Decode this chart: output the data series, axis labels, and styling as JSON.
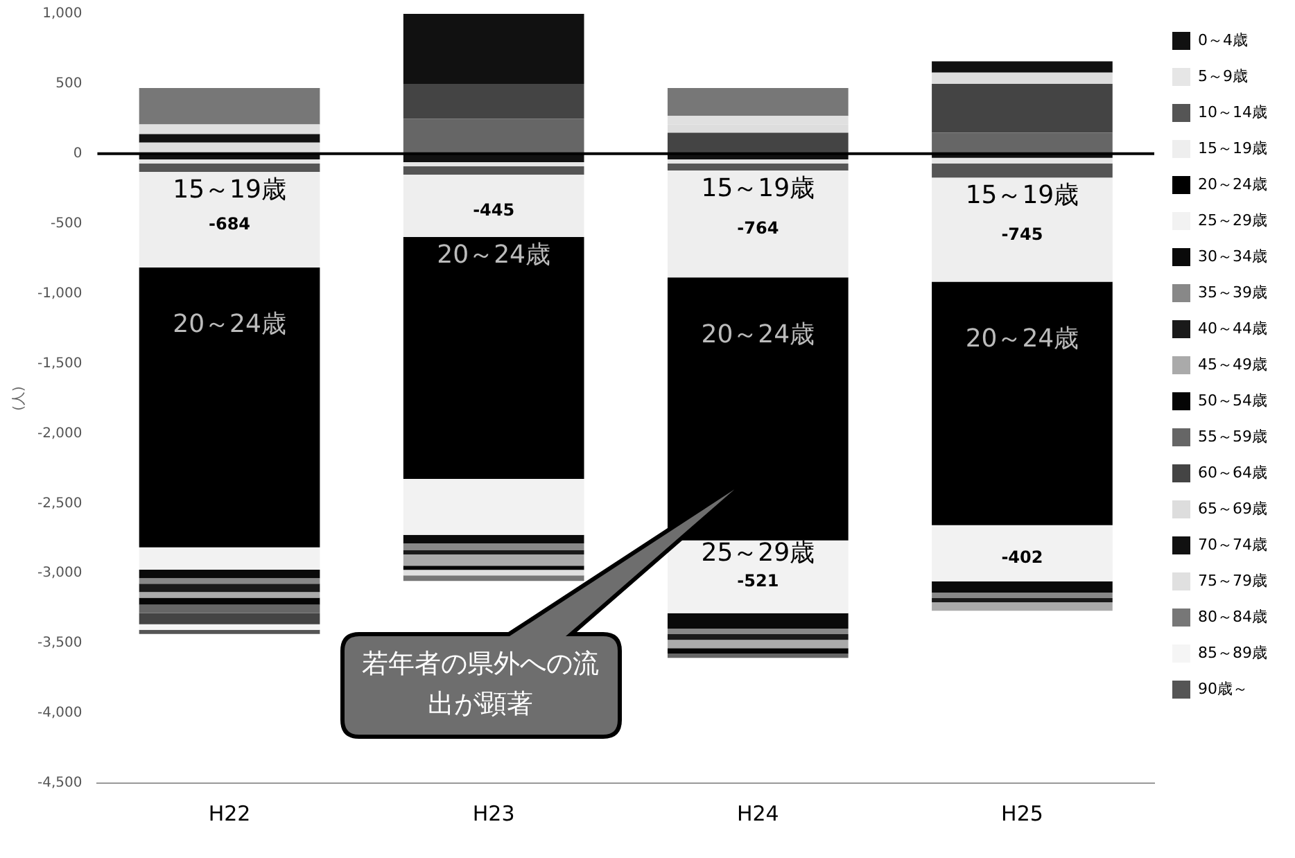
{
  "chart_data": {
    "type": "bar",
    "stacked": true,
    "ylabel": "(人)",
    "categories": [
      "H22",
      "H23",
      "H24",
      "H25"
    ],
    "series": [
      {
        "name": "0～4歳",
        "color": "#111111",
        "values": [
          -40,
          -60,
          -40,
          -30
        ]
      },
      {
        "name": "5～9歳",
        "color": "#e6e6e6",
        "values": [
          -30,
          -30,
          -30,
          -40
        ]
      },
      {
        "name": "10～14歳",
        "color": "#555555",
        "values": [
          -60,
          -60,
          -50,
          -100
        ]
      },
      {
        "name": "15～19歳",
        "color": "#eeeeee",
        "values": [
          -684,
          -445,
          -764,
          -745
        ],
        "value_labels": [
          "-684",
          "-445",
          "-764",
          "-745"
        ]
      },
      {
        "name": "20～24歳",
        "color": "#000000",
        "values": [
          -2000,
          -1730,
          -1880,
          -1740
        ]
      },
      {
        "name": "25～29歳",
        "color": "#f2f2f2",
        "values": [
          -160,
          -400,
          -521,
          -402
        ],
        "value_labels": [
          null,
          null,
          "-521",
          "-402"
        ]
      },
      {
        "name": "30～34歳",
        "color": "#0a0a0a",
        "values": [
          -60,
          -60,
          -110,
          -80
        ]
      },
      {
        "name": "35～39歳",
        "color": "#888888",
        "values": [
          -40,
          -50,
          -40,
          -40
        ]
      },
      {
        "name": "40～44歳",
        "color": "#1a1a1a",
        "values": [
          -60,
          -30,
          -40,
          -30
        ]
      },
      {
        "name": "45～49歳",
        "color": "#aaaaaa",
        "values": [
          -40,
          -80,
          -60,
          -60
        ]
      },
      {
        "name": "50～54歳",
        "color": "#050505",
        "values": [
          -50,
          -30,
          -40,
          0
        ]
      },
      {
        "name": "55～59歳",
        "color": "#666666",
        "values": [
          -60,
          250,
          -30,
          150
        ]
      },
      {
        "name": "60～64歳",
        "color": "#444444",
        "values": [
          -80,
          250,
          150,
          350
        ]
      },
      {
        "name": "65～69歳",
        "color": "#dddddd",
        "values": [
          80,
          0,
          60,
          80
        ]
      },
      {
        "name": "70～74歳",
        "color": "#111111",
        "values": [
          60,
          500,
          0,
          80
        ]
      },
      {
        "name": "75～79歳",
        "color": "#e0e0e0",
        "values": [
          70,
          -40,
          60,
          0
        ]
      },
      {
        "name": "80～84歳",
        "color": "#777777",
        "values": [
          260,
          -40,
          200,
          0
        ]
      },
      {
        "name": "85～89歳",
        "color": "#f5f5f5",
        "values": [
          -40,
          0,
          0,
          0
        ]
      },
      {
        "name": "90歳～",
        "color": "#555555",
        "values": [
          -30,
          0,
          0,
          0
        ]
      }
    ],
    "ylim": [
      -4500,
      1000
    ],
    "yticks": [
      {
        "value": 1000,
        "label": "1,000"
      },
      500,
      0,
      -500,
      {
        "value": -1000,
        "label": "-1,000"
      },
      {
        "value": -1500,
        "label": "-1,500"
      },
      {
        "value": -2000,
        "label": "-2,000"
      },
      {
        "value": -2500,
        "label": "-2,500"
      },
      {
        "value": -3000,
        "label": "-3,000"
      },
      {
        "value": -3500,
        "label": "-3,500"
      },
      {
        "value": -4000,
        "label": "-4,000"
      },
      {
        "value": -4500,
        "label": "-4,500"
      }
    ],
    "ref_lines": [
      {
        "axis": "y",
        "value": 0,
        "color": "#000000"
      }
    ],
    "annotations": [
      "15～19歳",
      "15～19歳",
      "15～19歳",
      "20～24歳",
      "20～24歳",
      "20～24歳",
      "20～24歳",
      "25～29歳",
      "若年者の県外への流出が顕著"
    ],
    "grid": false,
    "legend": "right"
  }
}
